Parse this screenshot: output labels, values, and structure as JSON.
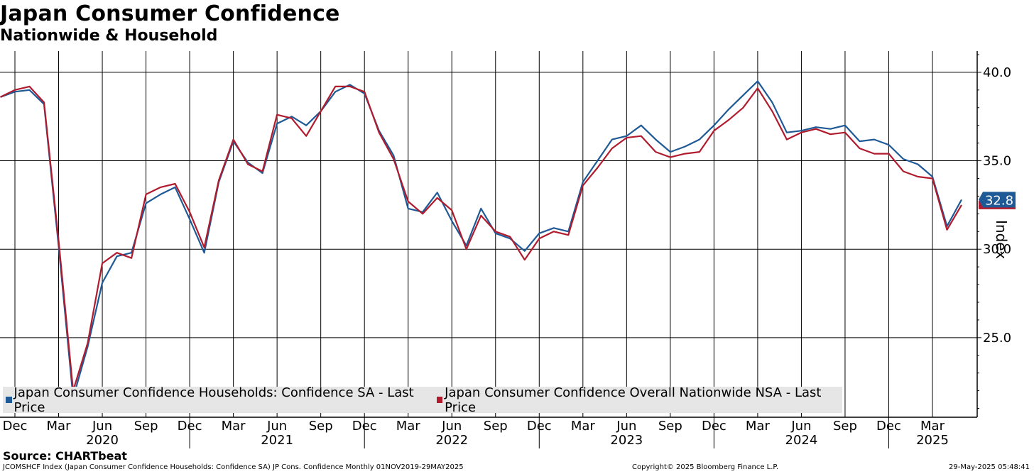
{
  "chart_data": {
    "type": "line",
    "title": "Japan Consumer Confidence",
    "subtitle": "Nationwide & Household",
    "ylabel": "Index",
    "ylim": [
      20.5,
      41.2
    ],
    "yticks": [
      25.0,
      30.0,
      35.0,
      40.0
    ],
    "ytick_labels": [
      "25.0",
      "30.0",
      "35.0",
      "40.0"
    ],
    "x_start": "2019-11",
    "x_end": "2025-06",
    "month_ticks": [
      {
        "date": "2019-12",
        "label": "Dec"
      },
      {
        "date": "2020-03",
        "label": "Mar"
      },
      {
        "date": "2020-06",
        "label": "Jun"
      },
      {
        "date": "2020-09",
        "label": "Sep"
      },
      {
        "date": "2020-12",
        "label": "Dec"
      },
      {
        "date": "2021-03",
        "label": "Mar"
      },
      {
        "date": "2021-06",
        "label": "Jun"
      },
      {
        "date": "2021-09",
        "label": "Sep"
      },
      {
        "date": "2021-12",
        "label": "Dec"
      },
      {
        "date": "2022-03",
        "label": "Mar"
      },
      {
        "date": "2022-06",
        "label": "Jun"
      },
      {
        "date": "2022-09",
        "label": "Sep"
      },
      {
        "date": "2022-12",
        "label": "Dec"
      },
      {
        "date": "2023-03",
        "label": "Mar"
      },
      {
        "date": "2023-06",
        "label": "Jun"
      },
      {
        "date": "2023-09",
        "label": "Sep"
      },
      {
        "date": "2023-12",
        "label": "Dec"
      },
      {
        "date": "2024-03",
        "label": "Mar"
      },
      {
        "date": "2024-06",
        "label": "Jun"
      },
      {
        "date": "2024-09",
        "label": "Sep"
      },
      {
        "date": "2024-12",
        "label": "Dec"
      },
      {
        "date": "2025-03",
        "label": "Mar"
      }
    ],
    "year_labels": [
      {
        "date": "2020-06",
        "label": "2020"
      },
      {
        "date": "2021-06",
        "label": "2021"
      },
      {
        "date": "2022-06",
        "label": "2022"
      },
      {
        "date": "2023-06",
        "label": "2023"
      },
      {
        "date": "2024-06",
        "label": "2024"
      },
      {
        "date": "2025-03",
        "label": "2025"
      }
    ],
    "year_dividers": [
      "2020-12",
      "2021-12",
      "2022-12",
      "2023-12",
      "2024-12"
    ],
    "grid": true,
    "legend_position": "bottom-left",
    "last_value_label": "32.8",
    "series": [
      {
        "name": "Japan Consumer Confidence Households: Confidence SA - Last Price",
        "color": "#1f5a96",
        "data": [
          [
            "2019-11",
            38.6
          ],
          [
            "2019-12",
            38.9
          ],
          [
            "2020-01",
            39.0
          ],
          [
            "2020-02",
            38.2
          ],
          [
            "2020-03",
            30.2
          ],
          [
            "2020-04",
            21.6
          ],
          [
            "2020-05",
            24.5
          ],
          [
            "2020-06",
            28.1
          ],
          [
            "2020-07",
            29.6
          ],
          [
            "2020-08",
            29.8
          ],
          [
            "2020-09",
            32.6
          ],
          [
            "2020-10",
            33.1
          ],
          [
            "2020-11",
            33.5
          ],
          [
            "2020-12",
            31.7
          ],
          [
            "2021-01",
            29.8
          ],
          [
            "2021-02",
            33.8
          ],
          [
            "2021-03",
            36.1
          ],
          [
            "2021-04",
            34.9
          ],
          [
            "2021-05",
            34.3
          ],
          [
            "2021-06",
            37.1
          ],
          [
            "2021-07",
            37.5
          ],
          [
            "2021-08",
            37.0
          ],
          [
            "2021-09",
            37.8
          ],
          [
            "2021-10",
            38.9
          ],
          [
            "2021-11",
            39.3
          ],
          [
            "2021-12",
            38.8
          ],
          [
            "2022-01",
            36.7
          ],
          [
            "2022-02",
            35.3
          ],
          [
            "2022-03",
            32.3
          ],
          [
            "2022-04",
            32.1
          ],
          [
            "2022-05",
            33.2
          ],
          [
            "2022-06",
            31.6
          ],
          [
            "2022-07",
            30.2
          ],
          [
            "2022-08",
            32.3
          ],
          [
            "2022-09",
            30.9
          ],
          [
            "2022-10",
            30.6
          ],
          [
            "2022-11",
            29.9
          ],
          [
            "2022-12",
            30.9
          ],
          [
            "2023-01",
            31.2
          ],
          [
            "2023-02",
            31.0
          ],
          [
            "2023-03",
            33.8
          ],
          [
            "2023-04",
            35.0
          ],
          [
            "2023-05",
            36.2
          ],
          [
            "2023-06",
            36.4
          ],
          [
            "2023-07",
            37.0
          ],
          [
            "2023-08",
            36.2
          ],
          [
            "2023-09",
            35.5
          ],
          [
            "2023-10",
            35.8
          ],
          [
            "2023-11",
            36.2
          ],
          [
            "2023-12",
            37.0
          ],
          [
            "2024-01",
            37.9
          ],
          [
            "2024-02",
            38.7
          ],
          [
            "2024-03",
            39.5
          ],
          [
            "2024-04",
            38.3
          ],
          [
            "2024-05",
            36.6
          ],
          [
            "2024-06",
            36.7
          ],
          [
            "2024-07",
            36.9
          ],
          [
            "2024-08",
            36.8
          ],
          [
            "2024-09",
            37.0
          ],
          [
            "2024-10",
            36.1
          ],
          [
            "2024-11",
            36.2
          ],
          [
            "2024-12",
            35.9
          ],
          [
            "2025-01",
            35.1
          ],
          [
            "2025-02",
            34.8
          ],
          [
            "2025-03",
            34.1
          ],
          [
            "2025-04",
            31.3
          ],
          [
            "2025-05",
            32.8
          ]
        ]
      },
      {
        "name": "Japan Consumer Confidence Overall Nationwide NSA - Last Price",
        "color": "#b01c2e",
        "data": [
          [
            "2019-11",
            38.6
          ],
          [
            "2019-12",
            39.0
          ],
          [
            "2020-01",
            39.2
          ],
          [
            "2020-02",
            38.3
          ],
          [
            "2020-03",
            30.5
          ],
          [
            "2020-04",
            22.0
          ],
          [
            "2020-05",
            24.7
          ],
          [
            "2020-06",
            29.2
          ],
          [
            "2020-07",
            29.8
          ],
          [
            "2020-08",
            29.5
          ],
          [
            "2020-09",
            33.1
          ],
          [
            "2020-10",
            33.5
          ],
          [
            "2020-11",
            33.7
          ],
          [
            "2020-12",
            32.1
          ],
          [
            "2021-01",
            30.1
          ],
          [
            "2021-02",
            33.9
          ],
          [
            "2021-03",
            36.2
          ],
          [
            "2021-04",
            34.8
          ],
          [
            "2021-05",
            34.4
          ],
          [
            "2021-06",
            37.6
          ],
          [
            "2021-07",
            37.4
          ],
          [
            "2021-08",
            36.4
          ],
          [
            "2021-09",
            37.8
          ],
          [
            "2021-10",
            39.2
          ],
          [
            "2021-11",
            39.2
          ],
          [
            "2021-12",
            38.9
          ],
          [
            "2022-01",
            36.6
          ],
          [
            "2022-02",
            35.1
          ],
          [
            "2022-03",
            32.7
          ],
          [
            "2022-04",
            32.0
          ],
          [
            "2022-05",
            32.9
          ],
          [
            "2022-06",
            32.2
          ],
          [
            "2022-07",
            30.0
          ],
          [
            "2022-08",
            31.9
          ],
          [
            "2022-09",
            31.0
          ],
          [
            "2022-10",
            30.7
          ],
          [
            "2022-11",
            29.4
          ],
          [
            "2022-12",
            30.6
          ],
          [
            "2023-01",
            31.0
          ],
          [
            "2023-02",
            30.8
          ],
          [
            "2023-03",
            33.6
          ],
          [
            "2023-04",
            34.6
          ],
          [
            "2023-05",
            35.7
          ],
          [
            "2023-06",
            36.3
          ],
          [
            "2023-07",
            36.4
          ],
          [
            "2023-08",
            35.5
          ],
          [
            "2023-09",
            35.2
          ],
          [
            "2023-10",
            35.4
          ],
          [
            "2023-11",
            35.5
          ],
          [
            "2023-12",
            36.7
          ],
          [
            "2024-01",
            37.3
          ],
          [
            "2024-02",
            38.0
          ],
          [
            "2024-03",
            39.1
          ],
          [
            "2024-04",
            37.8
          ],
          [
            "2024-05",
            36.2
          ],
          [
            "2024-06",
            36.6
          ],
          [
            "2024-07",
            36.8
          ],
          [
            "2024-08",
            36.5
          ],
          [
            "2024-09",
            36.6
          ],
          [
            "2024-10",
            35.7
          ],
          [
            "2024-11",
            35.4
          ],
          [
            "2024-12",
            35.4
          ],
          [
            "2025-01",
            34.4
          ],
          [
            "2025-02",
            34.1
          ],
          [
            "2025-03",
            34.0
          ],
          [
            "2025-04",
            31.1
          ],
          [
            "2025-05",
            32.5
          ]
        ]
      }
    ]
  },
  "source_label": "Source: CHARTbeat",
  "footer": {
    "left": "JCOMSHCF Index (Japan Consumer Confidence Households: Confidence SA) JP Cons. Confidence  Monthly 01NOV2019-29MAY2025",
    "center": "Copyright© 2025 Bloomberg Finance L.P.",
    "right": "29-May-2025 05:48:41"
  }
}
